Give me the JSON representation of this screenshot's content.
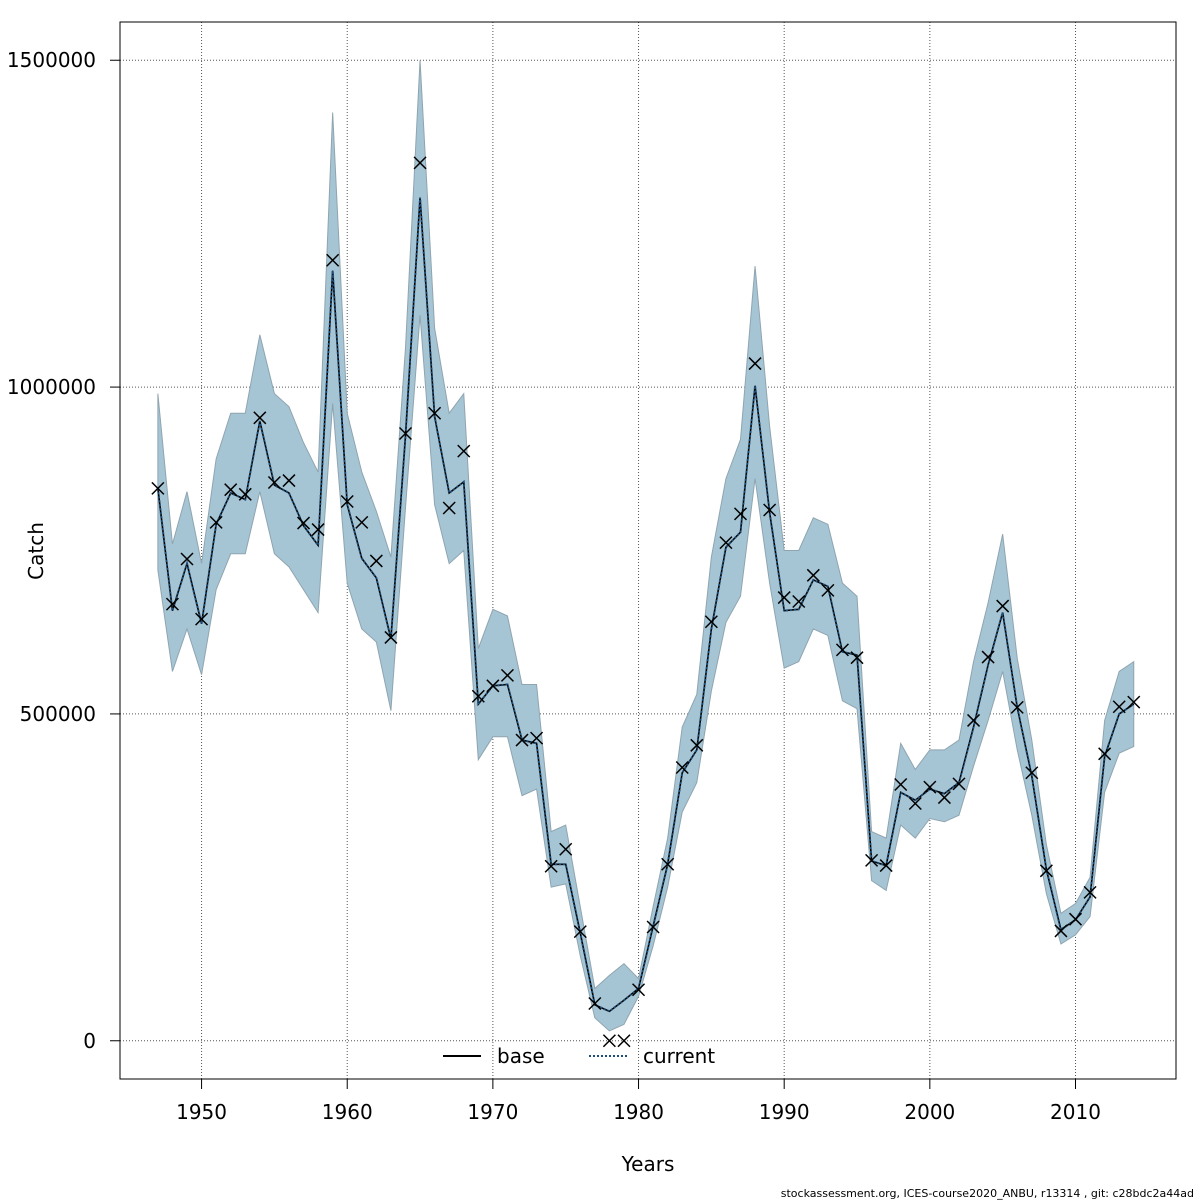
{
  "chart_data": {
    "type": "line",
    "xlabel": "Years",
    "ylabel": "Catch",
    "xlim": [
      1944.4,
      2016.9
    ],
    "ylim": [
      -58500,
      1558500
    ],
    "x_ticks": [
      1950,
      1960,
      1970,
      1980,
      1990,
      2000,
      2010
    ],
    "x_tick_labels": [
      "1950",
      "1960",
      "1970",
      "1980",
      "1990",
      "2000",
      "2010"
    ],
    "y_ticks": [
      0,
      500000,
      1000000,
      1500000
    ],
    "y_tick_labels": [
      "0",
      "500000",
      "1000000",
      "1500000"
    ],
    "grid": true,
    "legend_position": "bottom",
    "colors": {
      "band": "#a5c4d4",
      "band_edge": "#8fa5b0",
      "base": "#000000",
      "current": "#1f4e79",
      "grid": "#555555"
    },
    "x": [
      1947,
      1948,
      1949,
      1950,
      1951,
      1952,
      1953,
      1954,
      1955,
      1956,
      1957,
      1958,
      1959,
      1960,
      1961,
      1962,
      1963,
      1964,
      1965,
      1966,
      1967,
      1968,
      1969,
      1970,
      1971,
      1972,
      1973,
      1974,
      1975,
      1976,
      1977,
      1978,
      1979,
      1980,
      1981,
      1982,
      1983,
      1984,
      1985,
      1986,
      1987,
      1988,
      1989,
      1990,
      1991,
      1992,
      1993,
      1994,
      1995,
      1996,
      1997,
      1998,
      1999,
      2000,
      2001,
      2002,
      2003,
      2004,
      2005,
      2006,
      2007,
      2008,
      2009,
      2010,
      2011,
      2012,
      2013,
      2014
    ],
    "series": [
      {
        "name": "base",
        "style": "solid",
        "values": [
          845000,
          658000,
          730000,
          638000,
          790000,
          838000,
          828000,
          948000,
          850000,
          838000,
          788000,
          758000,
          1178000,
          820000,
          738000,
          708000,
          615000,
          925000,
          1290000,
          955000,
          838000,
          855000,
          515000,
          543000,
          545000,
          460000,
          455000,
          270000,
          270000,
          165000,
          55000,
          45000,
          62000,
          80000,
          175000,
          270000,
          410000,
          445000,
          630000,
          755000,
          778000,
          1002000,
          808000,
          658000,
          660000,
          705000,
          695000,
          595000,
          590000,
          275000,
          268000,
          380000,
          368000,
          385000,
          378000,
          395000,
          480000,
          575000,
          655000,
          510000,
          405000,
          262000,
          170000,
          185000,
          220000,
          435000,
          500000,
          515000
        ]
      },
      {
        "name": "current",
        "style": "dotted",
        "values": [
          845000,
          658000,
          730000,
          638000,
          790000,
          838000,
          828000,
          948000,
          850000,
          838000,
          788000,
          758000,
          1178000,
          820000,
          738000,
          708000,
          615000,
          925000,
          1290000,
          955000,
          838000,
          855000,
          515000,
          543000,
          545000,
          460000,
          455000,
          270000,
          270000,
          165000,
          55000,
          45000,
          62000,
          80000,
          175000,
          270000,
          410000,
          445000,
          630000,
          755000,
          778000,
          1002000,
          808000,
          658000,
          660000,
          705000,
          695000,
          595000,
          590000,
          275000,
          268000,
          380000,
          368000,
          385000,
          378000,
          395000,
          480000,
          575000,
          655000,
          510000,
          405000,
          262000,
          170000,
          185000,
          220000,
          435000,
          500000,
          515000
        ]
      }
    ],
    "confidence_band": {
      "upper": [
        990000,
        760000,
        840000,
        730000,
        890000,
        960000,
        960000,
        1080000,
        990000,
        970000,
        915000,
        870000,
        1420000,
        960000,
        870000,
        810000,
        740000,
        1060000,
        1500000,
        1090000,
        960000,
        990000,
        600000,
        660000,
        650000,
        545000,
        545000,
        320000,
        330000,
        205000,
        80000,
        100000,
        118000,
        95000,
        205000,
        310000,
        480000,
        530000,
        740000,
        860000,
        920000,
        1185000,
        940000,
        750000,
        750000,
        800000,
        790000,
        700000,
        680000,
        320000,
        310000,
        455000,
        415000,
        445000,
        445000,
        460000,
        580000,
        670000,
        775000,
        585000,
        460000,
        300000,
        195000,
        210000,
        250000,
        490000,
        565000,
        580000
      ],
      "lower": [
        720000,
        565000,
        630000,
        560000,
        690000,
        745000,
        745000,
        840000,
        745000,
        725000,
        690000,
        655000,
        975000,
        700000,
        630000,
        610000,
        505000,
        815000,
        1110000,
        820000,
        730000,
        750000,
        430000,
        465000,
        465000,
        375000,
        385000,
        235000,
        240000,
        130000,
        35000,
        15000,
        25000,
        68000,
        145000,
        235000,
        350000,
        395000,
        535000,
        640000,
        680000,
        860000,
        700000,
        570000,
        580000,
        630000,
        620000,
        520000,
        508000,
        245000,
        230000,
        330000,
        310000,
        340000,
        335000,
        345000,
        420000,
        490000,
        565000,
        445000,
        345000,
        225000,
        148000,
        162000,
        190000,
        380000,
        440000,
        450000
      ]
    },
    "observed": {
      "marker": "x",
      "x": [
        1947,
        1948,
        1949,
        1950,
        1951,
        1952,
        1953,
        1954,
        1955,
        1956,
        1957,
        1958,
        1959,
        1960,
        1961,
        1962,
        1963,
        1964,
        1965,
        1966,
        1967,
        1968,
        1969,
        1970,
        1971,
        1972,
        1973,
        1974,
        1975,
        1976,
        1977,
        1978,
        1979,
        1980,
        1981,
        1982,
        1983,
        1984,
        1985,
        1986,
        1987,
        1988,
        1989,
        1990,
        1991,
        1992,
        1993,
        1994,
        1995,
        1996,
        1997,
        1998,
        1999,
        2000,
        2001,
        2002,
        2003,
        2004,
        2005,
        2006,
        2007,
        2008,
        2009,
        2010,
        2011,
        2012,
        2013,
        2014
      ],
      "values": [
        845000,
        668000,
        737000,
        645000,
        793000,
        843000,
        836000,
        953000,
        854000,
        857000,
        792000,
        782000,
        1194000,
        825000,
        793000,
        734000,
        617000,
        929000,
        1343000,
        960000,
        815000,
        902000,
        527000,
        543000,
        559000,
        460000,
        463000,
        267000,
        293000,
        167000,
        57000,
        0,
        0,
        78000,
        174000,
        270000,
        418000,
        452000,
        641000,
        762000,
        806000,
        1036000,
        812000,
        678000,
        672000,
        712000,
        689000,
        598000,
        586000,
        276000,
        268000,
        392000,
        363000,
        388000,
        372000,
        393000,
        490000,
        587000,
        665000,
        510000,
        410000,
        260000,
        168000,
        186000,
        227000,
        439000,
        511000,
        518000
      ]
    },
    "legend": [
      "base",
      "current"
    ],
    "footer": "stockassessment.org, ICES-course2020_ANBU, r13314 , git: c28bdc2a44ad"
  }
}
